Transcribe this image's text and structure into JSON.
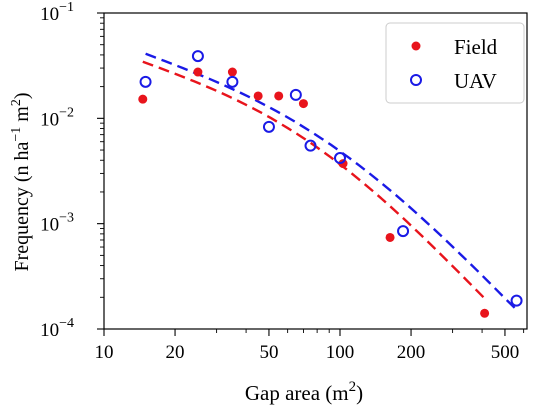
{
  "chart_data": {
    "type": "scatter",
    "xscale": "log",
    "yscale": "log",
    "xlim": [
      10,
      620
    ],
    "ylim": [
      0.0001,
      0.1
    ],
    "xlabel": {
      "base": "Gap area (m",
      "sup": "2",
      "end": ")"
    },
    "ylabel": {
      "base": "Frequency (n ha",
      "sup": "−1",
      "mid": " m",
      "sup2": "2",
      "end": ")"
    },
    "xticks": [
      {
        "value": 10,
        "label": "10"
      },
      {
        "value": 20,
        "label": "20"
      },
      {
        "value": 50,
        "label": "50"
      },
      {
        "value": 100,
        "label": "100"
      },
      {
        "value": 200,
        "label": "200"
      },
      {
        "value": 500,
        "label": "500"
      }
    ],
    "yticks": [
      {
        "value": 0.0001,
        "base": "10",
        "exp": "−4"
      },
      {
        "value": 0.001,
        "base": "10",
        "exp": "−3"
      },
      {
        "value": 0.01,
        "base": "10",
        "exp": "−2"
      },
      {
        "value": 0.1,
        "base": "10",
        "exp": "−1"
      }
    ],
    "grid": false,
    "legend_position": "top-right",
    "series": [
      {
        "name": "Field",
        "color": "#e8141c",
        "marker": "filled-circle",
        "points": [
          {
            "x": 14.6,
            "y": 0.0152
          },
          {
            "x": 25,
            "y": 0.0275
          },
          {
            "x": 35,
            "y": 0.0275
          },
          {
            "x": 45,
            "y": 0.0163
          },
          {
            "x": 55,
            "y": 0.0163
          },
          {
            "x": 70,
            "y": 0.0138
          },
          {
            "x": 103,
            "y": 0.00372
          },
          {
            "x": 163,
            "y": 0.00074
          },
          {
            "x": 410,
            "y": 0.000141
          }
        ],
        "fit": {
          "x": [
            14.6,
            410
          ],
          "y": [
            0.0345,
            0.000195
          ]
        }
      },
      {
        "name": "UAV",
        "color": "#1a1ae6",
        "marker": "open-circle",
        "points": [
          {
            "x": 15,
            "y": 0.0222
          },
          {
            "x": 25,
            "y": 0.039
          },
          {
            "x": 35,
            "y": 0.0222
          },
          {
            "x": 50,
            "y": 0.0083
          },
          {
            "x": 65,
            "y": 0.0167
          },
          {
            "x": 75,
            "y": 0.0055
          },
          {
            "x": 100,
            "y": 0.0042
          },
          {
            "x": 185,
            "y": 0.00085
          },
          {
            "x": 560,
            "y": 0.000186
          }
        ],
        "fit": {
          "x": [
            15,
            560
          ],
          "y": [
            0.041,
            0.000152
          ]
        }
      }
    ]
  }
}
